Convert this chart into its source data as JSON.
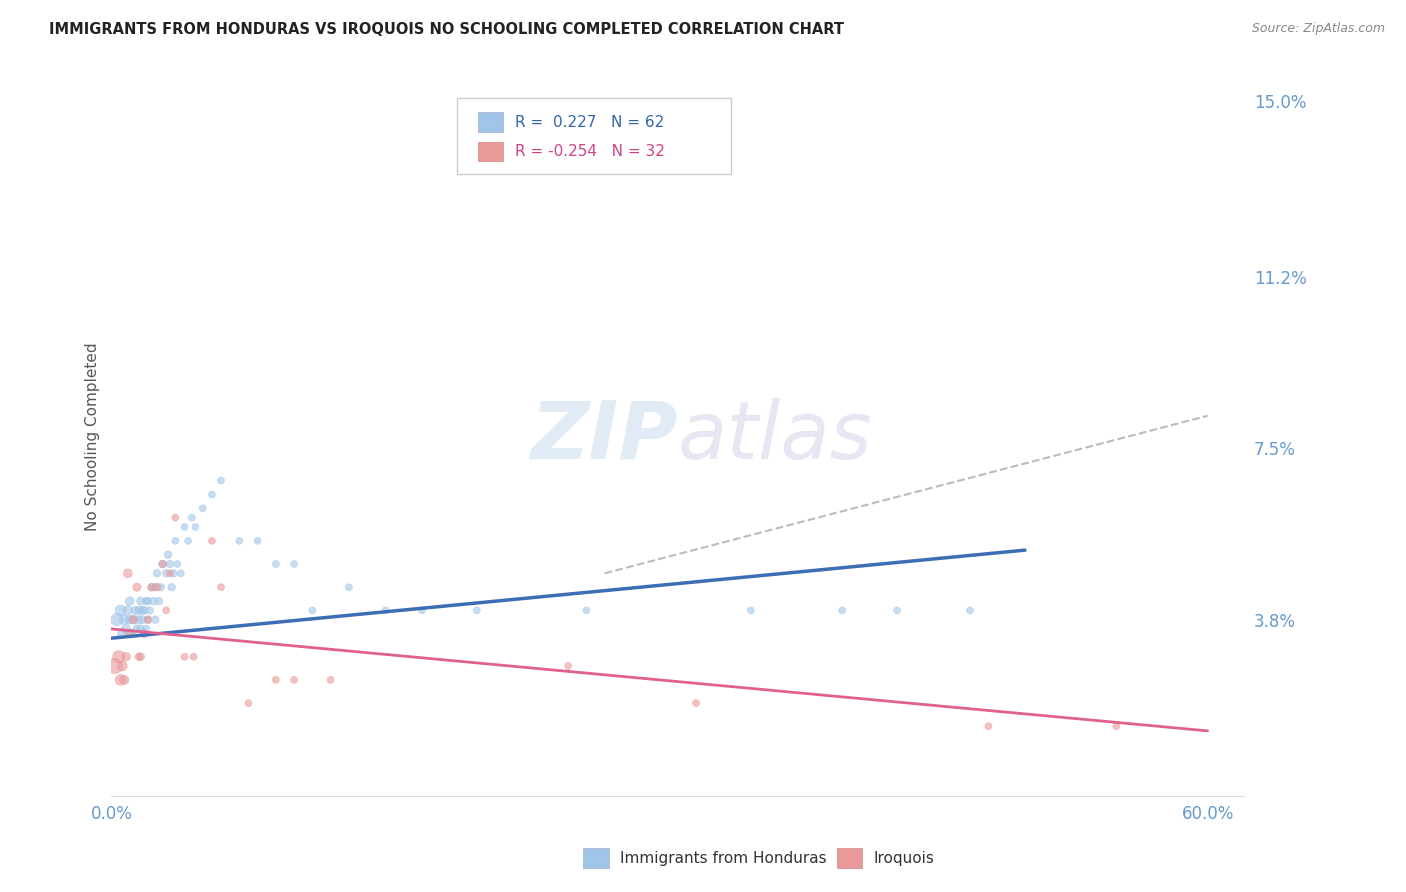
{
  "title": "IMMIGRANTS FROM HONDURAS VS IROQUOIS NO SCHOOLING COMPLETED CORRELATION CHART",
  "source": "Source: ZipAtlas.com",
  "ylabel": "No Schooling Completed",
  "xlim": [
    0.0,
    0.62
  ],
  "ylim": [
    0.0,
    0.155
  ],
  "xticks": [
    0.0,
    0.1,
    0.2,
    0.3,
    0.4,
    0.5,
    0.6
  ],
  "xticklabels": [
    "0.0%",
    "",
    "",
    "",
    "",
    "",
    "60.0%"
  ],
  "ytick_positions": [
    0.038,
    0.075,
    0.112,
    0.15
  ],
  "ytick_labels": [
    "3.8%",
    "7.5%",
    "11.2%",
    "15.0%"
  ],
  "blue_color": "#9fc5e8",
  "pink_color": "#ea9999",
  "blue_line_color": "#3d6eb5",
  "pink_line_color": "#e06090",
  "dashed_line_color": "#bbbbbb",
  "legend_R_blue": "R =  0.227",
  "legend_N_blue": "N = 62",
  "legend_R_pink": "R = -0.254",
  "legend_N_pink": "N = 32",
  "watermark_zip": "ZIP",
  "watermark_atlas": "atlas",
  "blue_scatter_x": [
    0.003,
    0.005,
    0.006,
    0.007,
    0.008,
    0.009,
    0.01,
    0.01,
    0.011,
    0.012,
    0.013,
    0.014,
    0.015,
    0.015,
    0.016,
    0.016,
    0.017,
    0.017,
    0.018,
    0.018,
    0.019,
    0.019,
    0.02,
    0.02,
    0.021,
    0.022,
    0.023,
    0.024,
    0.024,
    0.025,
    0.026,
    0.027,
    0.028,
    0.03,
    0.031,
    0.032,
    0.033,
    0.034,
    0.035,
    0.036,
    0.038,
    0.04,
    0.042,
    0.044,
    0.046,
    0.05,
    0.055,
    0.06,
    0.07,
    0.08,
    0.09,
    0.1,
    0.11,
    0.13,
    0.15,
    0.17,
    0.2,
    0.26,
    0.35,
    0.4,
    0.43,
    0.47
  ],
  "blue_scatter_y": [
    0.038,
    0.04,
    0.035,
    0.038,
    0.036,
    0.04,
    0.042,
    0.038,
    0.035,
    0.038,
    0.04,
    0.036,
    0.04,
    0.038,
    0.042,
    0.036,
    0.04,
    0.038,
    0.035,
    0.04,
    0.036,
    0.042,
    0.038,
    0.042,
    0.04,
    0.045,
    0.042,
    0.045,
    0.038,
    0.048,
    0.042,
    0.045,
    0.05,
    0.048,
    0.052,
    0.05,
    0.045,
    0.048,
    0.055,
    0.05,
    0.048,
    0.058,
    0.055,
    0.06,
    0.058,
    0.062,
    0.065,
    0.068,
    0.055,
    0.055,
    0.05,
    0.05,
    0.04,
    0.045,
    0.04,
    0.04,
    0.04,
    0.04,
    0.04,
    0.04,
    0.04,
    0.04
  ],
  "blue_scatter_sizes": [
    80,
    60,
    50,
    50,
    45,
    45,
    40,
    40,
    40,
    40,
    35,
    35,
    35,
    35,
    35,
    35,
    35,
    35,
    30,
    30,
    30,
    30,
    30,
    30,
    30,
    30,
    30,
    30,
    30,
    30,
    30,
    30,
    30,
    30,
    30,
    30,
    30,
    30,
    25,
    25,
    25,
    25,
    25,
    25,
    25,
    25,
    25,
    25,
    25,
    25,
    25,
    25,
    25,
    25,
    25,
    25,
    25,
    25,
    25,
    25,
    25,
    25
  ],
  "pink_scatter_x": [
    0.002,
    0.004,
    0.005,
    0.006,
    0.007,
    0.008,
    0.009,
    0.01,
    0.012,
    0.014,
    0.015,
    0.016,
    0.018,
    0.02,
    0.022,
    0.025,
    0.028,
    0.03,
    0.032,
    0.035,
    0.04,
    0.045,
    0.055,
    0.06,
    0.075,
    0.09,
    0.1,
    0.12,
    0.25,
    0.32,
    0.48,
    0.55
  ],
  "pink_scatter_y": [
    0.028,
    0.03,
    0.025,
    0.028,
    0.025,
    0.03,
    0.048,
    0.035,
    0.038,
    0.045,
    0.03,
    0.03,
    0.035,
    0.038,
    0.045,
    0.045,
    0.05,
    0.04,
    0.048,
    0.06,
    0.03,
    0.03,
    0.055,
    0.045,
    0.02,
    0.025,
    0.025,
    0.025,
    0.028,
    0.02,
    0.015,
    0.015
  ],
  "pink_scatter_sizes": [
    120,
    80,
    60,
    50,
    45,
    40,
    40,
    35,
    35,
    35,
    30,
    30,
    30,
    30,
    30,
    30,
    30,
    25,
    25,
    25,
    25,
    25,
    25,
    25,
    25,
    25,
    25,
    25,
    25,
    25,
    25,
    25
  ],
  "blue_line_x": [
    0.0,
    0.5
  ],
  "blue_line_y": [
    0.034,
    0.053
  ],
  "pink_line_x": [
    0.0,
    0.6
  ],
  "pink_line_y": [
    0.036,
    0.014
  ],
  "dashed_line_x": [
    0.27,
    0.6
  ],
  "dashed_line_y": [
    0.048,
    0.082
  ]
}
